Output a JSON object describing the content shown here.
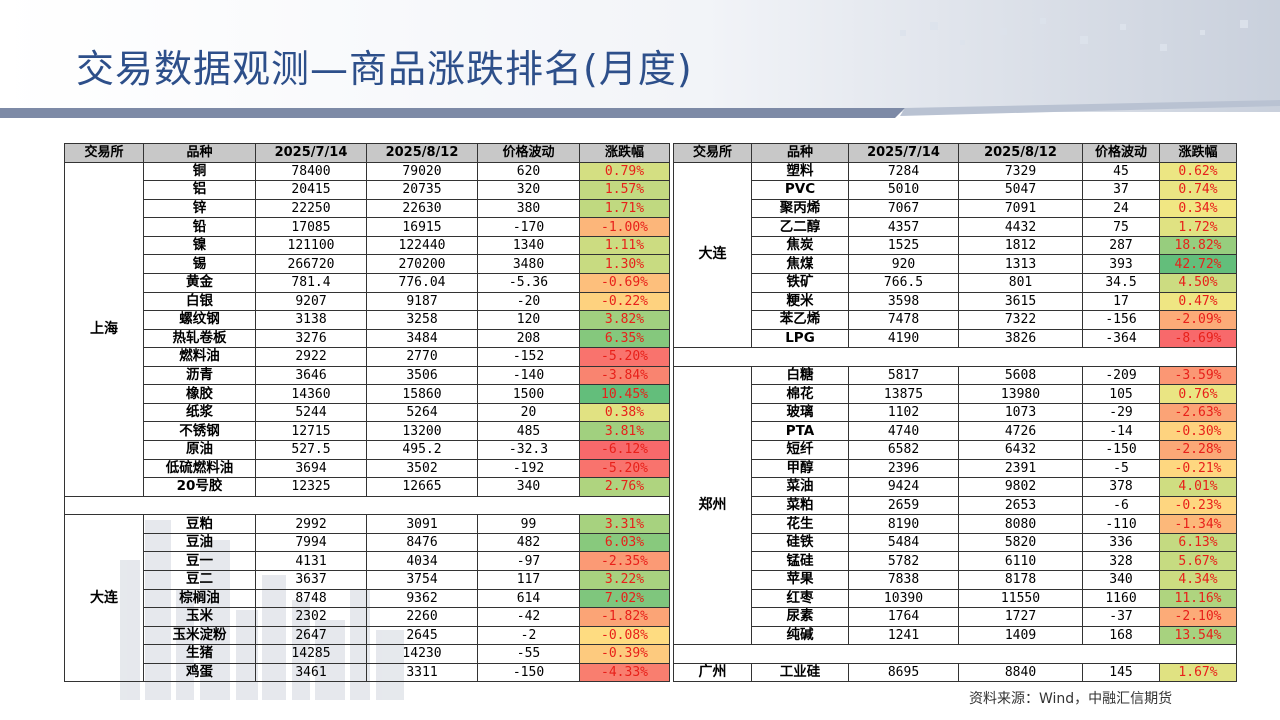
{
  "title": "交易数据观测—商品涨跌排名(月度)",
  "source": "资料来源：Wind，中融汇信期货",
  "headers": [
    "交易所",
    "品种",
    "2025/7/14",
    "2025/8/12",
    "价格波动",
    "涨跌幅"
  ],
  "colors": {
    "title": "#2d4f8a",
    "header_bg": "#c8c8c8",
    "pct_text": "#e8201a",
    "up": "#63be7b",
    "mid": "#ffeb84",
    "down": "#f8696b"
  },
  "left_table": {
    "groups": [
      {
        "exchange": "上海",
        "rows": [
          [
            "铜",
            "78400",
            "79020",
            "620",
            "0.79%",
            0.79
          ],
          [
            "铝",
            "20415",
            "20735",
            "320",
            "1.57%",
            1.57
          ],
          [
            "锌",
            "22250",
            "22630",
            "380",
            "1.71%",
            1.71
          ],
          [
            "铅",
            "17085",
            "16915",
            "-170",
            "-1.00%",
            -1.0
          ],
          [
            "镍",
            "121100",
            "122440",
            "1340",
            "1.11%",
            1.11
          ],
          [
            "锡",
            "266720",
            "270200",
            "3480",
            "1.30%",
            1.3
          ],
          [
            "黄金",
            "781.4",
            "776.04",
            "-5.36",
            "-0.69%",
            -0.69
          ],
          [
            "白银",
            "9207",
            "9187",
            "-20",
            "-0.22%",
            -0.22
          ],
          [
            "螺纹钢",
            "3138",
            "3258",
            "120",
            "3.82%",
            3.82
          ],
          [
            "热轧卷板",
            "3276",
            "3484",
            "208",
            "6.35%",
            6.35
          ],
          [
            "燃料油",
            "2922",
            "2770",
            "-152",
            "-5.20%",
            -5.2
          ],
          [
            "沥青",
            "3646",
            "3506",
            "-140",
            "-3.84%",
            -3.84
          ],
          [
            "橡胶",
            "14360",
            "15860",
            "1500",
            "10.45%",
            10.45
          ],
          [
            "纸浆",
            "5244",
            "5264",
            "20",
            "0.38%",
            0.38
          ],
          [
            "不锈钢",
            "12715",
            "13200",
            "485",
            "3.81%",
            3.81
          ],
          [
            "原油",
            "527.5",
            "495.2",
            "-32.3",
            "-6.12%",
            -6.12
          ],
          [
            "低硫燃料油",
            "3694",
            "3502",
            "-192",
            "-5.20%",
            -5.2
          ],
          [
            "20号胶",
            "12325",
            "12665",
            "340",
            "2.76%",
            2.76
          ]
        ]
      },
      {
        "exchange": "大连",
        "rows": [
          [
            "豆粕",
            "2992",
            "3091",
            "99",
            "3.31%",
            3.31
          ],
          [
            "豆油",
            "7994",
            "8476",
            "482",
            "6.03%",
            6.03
          ],
          [
            "豆一",
            "4131",
            "4034",
            "-97",
            "-2.35%",
            -2.35
          ],
          [
            "豆二",
            "3637",
            "3754",
            "117",
            "3.22%",
            3.22
          ],
          [
            "棕榈油",
            "8748",
            "9362",
            "614",
            "7.02%",
            7.02
          ],
          [
            "玉米",
            "2302",
            "2260",
            "-42",
            "-1.82%",
            -1.82
          ],
          [
            "玉米淀粉",
            "2647",
            "2645",
            "-2",
            "-0.08%",
            -0.08
          ],
          [
            "生猪",
            "14285",
            "14230",
            "-55",
            "-0.39%",
            -0.39
          ],
          [
            "鸡蛋",
            "3461",
            "3311",
            "-150",
            "-4.33%",
            -4.33
          ]
        ]
      }
    ]
  },
  "right_table": {
    "groups": [
      {
        "exchange": "大连",
        "rows": [
          [
            "塑料",
            "7284",
            "7329",
            "45",
            "0.62%",
            0.62
          ],
          [
            "PVC",
            "5010",
            "5047",
            "37",
            "0.74%",
            0.74
          ],
          [
            "聚丙烯",
            "7067",
            "7091",
            "24",
            "0.34%",
            0.34
          ],
          [
            "乙二醇",
            "4357",
            "4432",
            "75",
            "1.72%",
            1.72
          ],
          [
            "焦炭",
            "1525",
            "1812",
            "287",
            "18.82%",
            18.82
          ],
          [
            "焦煤",
            "920",
            "1313",
            "393",
            "42.72%",
            42.72
          ],
          [
            "铁矿",
            "766.5",
            "801",
            "34.5",
            "4.50%",
            4.5
          ],
          [
            "粳米",
            "3598",
            "3615",
            "17",
            "0.47%",
            0.47
          ],
          [
            "苯乙烯",
            "7478",
            "7322",
            "-156",
            "-2.09%",
            -2.09
          ],
          [
            "LPG",
            "4190",
            "3826",
            "-364",
            "-8.69%",
            -8.69
          ]
        ]
      },
      {
        "exchange": "郑州",
        "rows": [
          [
            "白糖",
            "5817",
            "5608",
            "-209",
            "-3.59%",
            -3.59
          ],
          [
            "棉花",
            "13875",
            "13980",
            "105",
            "0.76%",
            0.76
          ],
          [
            "玻璃",
            "1102",
            "1073",
            "-29",
            "-2.63%",
            -2.63
          ],
          [
            "PTA",
            "4740",
            "4726",
            "-14",
            "-0.30%",
            -0.3
          ],
          [
            "短纤",
            "6582",
            "6432",
            "-150",
            "-2.28%",
            -2.28
          ],
          [
            "甲醇",
            "2396",
            "2391",
            "-5",
            "-0.21%",
            -0.21
          ],
          [
            "菜油",
            "9424",
            "9802",
            "378",
            "4.01%",
            4.01
          ],
          [
            "菜粕",
            "2659",
            "2653",
            "-6",
            "-0.23%",
            -0.23
          ],
          [
            "花生",
            "8190",
            "8080",
            "-110",
            "-1.34%",
            -1.34
          ],
          [
            "硅铁",
            "5484",
            "5820",
            "336",
            "6.13%",
            6.13
          ],
          [
            "锰硅",
            "5782",
            "6110",
            "328",
            "5.67%",
            5.67
          ],
          [
            "苹果",
            "7838",
            "8178",
            "340",
            "4.34%",
            4.34
          ],
          [
            "红枣",
            "10390",
            "11550",
            "1160",
            "11.16%",
            11.16
          ],
          [
            "尿素",
            "1764",
            "1727",
            "-37",
            "-2.10%",
            -2.1
          ],
          [
            "纯碱",
            "1241",
            "1409",
            "168",
            "13.54%",
            13.54
          ]
        ]
      },
      {
        "exchange": "广州",
        "rows": [
          [
            "工业硅",
            "8695",
            "8840",
            "145",
            "1.67%",
            1.67
          ]
        ]
      }
    ]
  }
}
